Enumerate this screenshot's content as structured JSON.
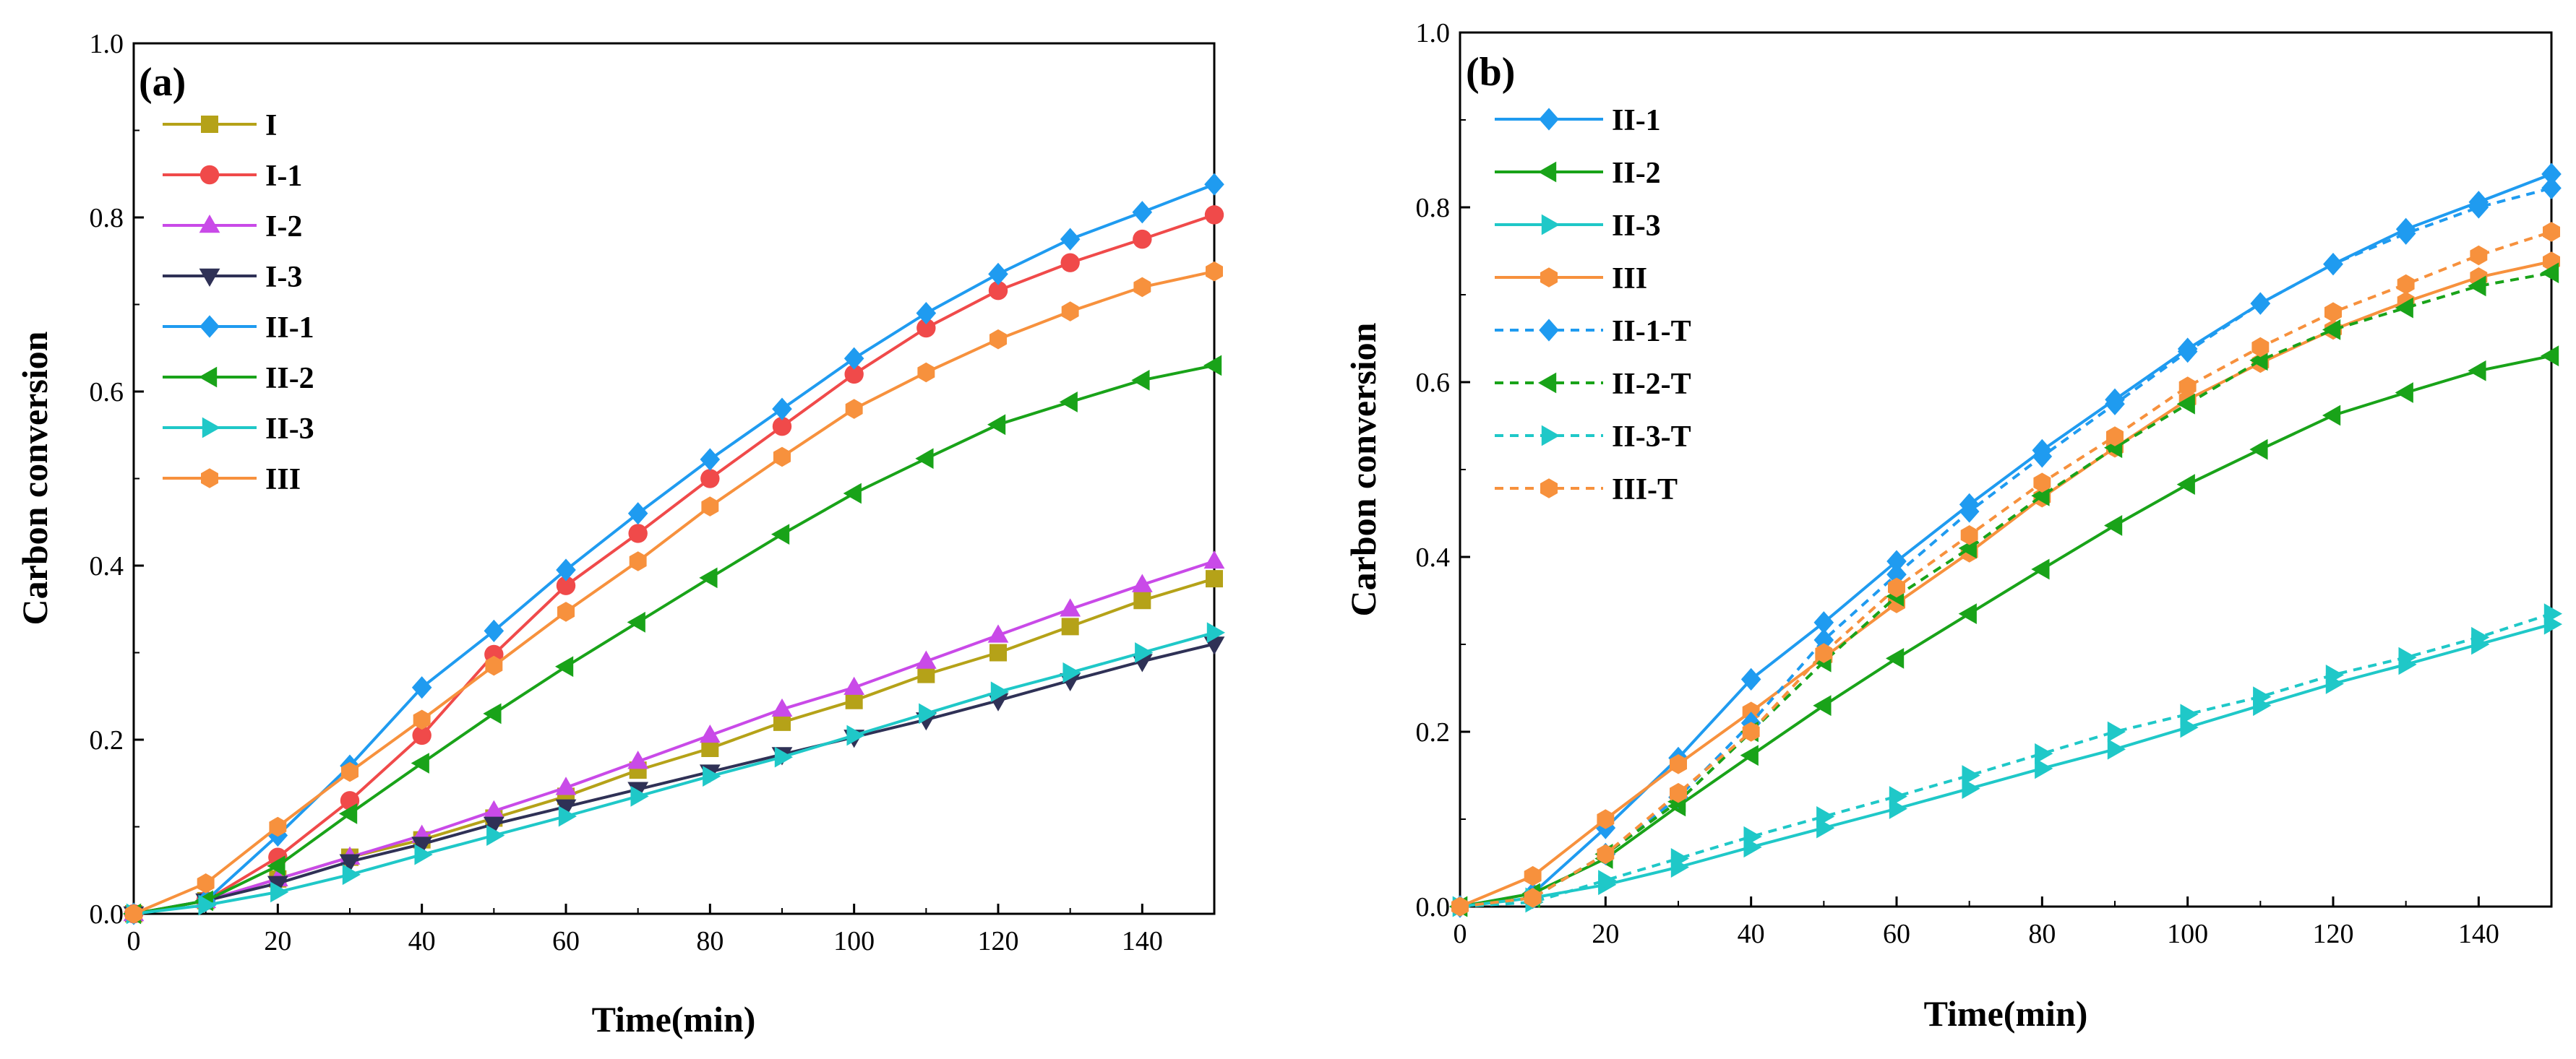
{
  "chart_data": [
    {
      "type": "line",
      "panel_label": "(a)",
      "xlabel": "Time(min)",
      "ylabel": "Carbon conversion",
      "xlim": [
        0,
        150
      ],
      "ylim": [
        0,
        1.0
      ],
      "xticks": [
        "0",
        "20",
        "40",
        "60",
        "80",
        "100",
        "120",
        "140"
      ],
      "yticks": [
        "0.0",
        "0.2",
        "0.4",
        "0.6",
        "0.8",
        "1.0"
      ],
      "x": [
        0,
        10,
        20,
        30,
        40,
        50,
        60,
        70,
        80,
        90,
        100,
        110,
        120,
        130,
        140,
        150
      ],
      "legend_position": "top-left",
      "series": [
        {
          "name": "I",
          "color": "#b5a218",
          "marker": "square",
          "dashed": false,
          "values": [
            0,
            0.015,
            0.04,
            0.065,
            0.085,
            0.11,
            0.135,
            0.165,
            0.19,
            0.22,
            0.245,
            0.275,
            0.3,
            0.33,
            0.36,
            0.385
          ]
        },
        {
          "name": "I-1",
          "color": "#f04a4a",
          "marker": "circle",
          "dashed": false,
          "values": [
            0,
            0.015,
            0.065,
            0.13,
            0.205,
            0.298,
            0.377,
            0.437,
            0.5,
            0.56,
            0.62,
            0.673,
            0.716,
            0.748,
            0.775,
            0.803
          ]
        },
        {
          "name": "I-2",
          "color": "#c94ae8",
          "marker": "triangle-up",
          "dashed": false,
          "values": [
            0,
            0.015,
            0.04,
            0.065,
            0.09,
            0.118,
            0.145,
            0.175,
            0.205,
            0.235,
            0.26,
            0.29,
            0.32,
            0.35,
            0.378,
            0.405
          ]
        },
        {
          "name": "I-3",
          "color": "#2f3156",
          "marker": "triangle-down",
          "dashed": false,
          "values": [
            0,
            0.015,
            0.035,
            0.06,
            0.08,
            0.103,
            0.123,
            0.143,
            0.163,
            0.183,
            0.203,
            0.223,
            0.245,
            0.268,
            0.29,
            0.31
          ]
        },
        {
          "name": "II-1",
          "color": "#1f9bf0",
          "marker": "diamond",
          "dashed": false,
          "values": [
            0,
            0.015,
            0.09,
            0.17,
            0.26,
            0.325,
            0.395,
            0.46,
            0.522,
            0.58,
            0.638,
            0.69,
            0.735,
            0.775,
            0.806,
            0.838
          ]
        },
        {
          "name": "II-2",
          "color": "#19a319",
          "marker": "triangle-left",
          "dashed": false,
          "values": [
            0,
            0.015,
            0.055,
            0.115,
            0.173,
            0.23,
            0.284,
            0.335,
            0.386,
            0.436,
            0.483,
            0.523,
            0.562,
            0.588,
            0.613,
            0.63
          ]
        },
        {
          "name": "II-3",
          "color": "#1fc8c8",
          "marker": "triangle-right",
          "dashed": false,
          "values": [
            0,
            0.01,
            0.025,
            0.045,
            0.068,
            0.09,
            0.112,
            0.135,
            0.158,
            0.18,
            0.205,
            0.23,
            0.255,
            0.277,
            0.3,
            0.323
          ]
        },
        {
          "name": "III",
          "color": "#f7913d",
          "marker": "hexagon",
          "dashed": false,
          "values": [
            0,
            0.035,
            0.1,
            0.163,
            0.223,
            0.285,
            0.347,
            0.405,
            0.468,
            0.525,
            0.58,
            0.622,
            0.66,
            0.692,
            0.72,
            0.738
          ]
        }
      ]
    },
    {
      "type": "line",
      "panel_label": "(b)",
      "xlabel": "Time(min)",
      "ylabel": "Carbon conversion",
      "xlim": [
        0,
        150
      ],
      "ylim": [
        0,
        1.0
      ],
      "xticks": [
        "0",
        "20",
        "40",
        "60",
        "80",
        "100",
        "120",
        "140"
      ],
      "yticks": [
        "0.0",
        "0.2",
        "0.4",
        "0.6",
        "0.8",
        "1.0"
      ],
      "x": [
        0,
        10,
        20,
        30,
        40,
        50,
        60,
        70,
        80,
        90,
        100,
        110,
        120,
        130,
        140,
        150
      ],
      "legend_position": "top-left",
      "series": [
        {
          "name": "II-1",
          "color": "#1f9bf0",
          "marker": "diamond",
          "dashed": false,
          "values": [
            0,
            0.015,
            0.09,
            0.17,
            0.26,
            0.325,
            0.395,
            0.46,
            0.522,
            0.58,
            0.638,
            0.69,
            0.735,
            0.775,
            0.806,
            0.838
          ]
        },
        {
          "name": "II-2",
          "color": "#19a319",
          "marker": "triangle-left",
          "dashed": false,
          "values": [
            0,
            0.015,
            0.055,
            0.115,
            0.173,
            0.23,
            0.284,
            0.335,
            0.386,
            0.436,
            0.483,
            0.523,
            0.562,
            0.588,
            0.613,
            0.63
          ]
        },
        {
          "name": "II-3",
          "color": "#1fc8c8",
          "marker": "triangle-right",
          "dashed": false,
          "values": [
            0,
            0.01,
            0.025,
            0.045,
            0.068,
            0.09,
            0.112,
            0.135,
            0.158,
            0.18,
            0.205,
            0.23,
            0.255,
            0.277,
            0.3,
            0.323
          ]
        },
        {
          "name": "III",
          "color": "#f7913d",
          "marker": "hexagon",
          "dashed": false,
          "values": [
            0,
            0.035,
            0.1,
            0.163,
            0.223,
            0.285,
            0.347,
            0.405,
            0.468,
            0.525,
            0.58,
            0.622,
            0.66,
            0.692,
            0.72,
            0.738
          ]
        },
        {
          "name": "II-1-T",
          "color": "#1f9bf0",
          "marker": "diamond",
          "dashed": true,
          "values": [
            0,
            0.01,
            0.06,
            0.125,
            0.21,
            0.305,
            0.38,
            0.452,
            0.515,
            0.575,
            0.635,
            0.69,
            0.735,
            0.77,
            0.8,
            0.822
          ]
        },
        {
          "name": "II-2-T",
          "color": "#19a319",
          "marker": "triangle-left",
          "dashed": true,
          "values": [
            0,
            0.01,
            0.06,
            0.12,
            0.2,
            0.28,
            0.355,
            0.41,
            0.47,
            0.525,
            0.575,
            0.625,
            0.66,
            0.685,
            0.71,
            0.725
          ]
        },
        {
          "name": "II-3-T",
          "color": "#1fc8c8",
          "marker": "triangle-right",
          "dashed": true,
          "values": [
            0,
            0.005,
            0.03,
            0.055,
            0.08,
            0.103,
            0.126,
            0.15,
            0.175,
            0.2,
            0.22,
            0.24,
            0.265,
            0.285,
            0.308,
            0.335
          ]
        },
        {
          "name": "III-T",
          "color": "#f7913d",
          "marker": "hexagon",
          "dashed": true,
          "values": [
            0,
            0.01,
            0.06,
            0.13,
            0.2,
            0.29,
            0.365,
            0.425,
            0.485,
            0.538,
            0.595,
            0.64,
            0.68,
            0.712,
            0.745,
            0.772
          ]
        }
      ]
    }
  ]
}
